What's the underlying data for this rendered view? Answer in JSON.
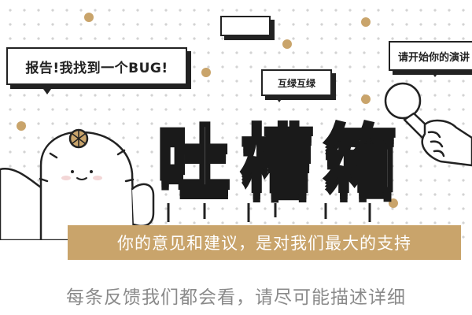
{
  "banner": {
    "report_bubble": "报告!我找到一个BUG!",
    "tag_bubble": "互绿互绿",
    "speech_bubble": "请开始你的演讲",
    "title_chars": [
      "吐",
      "槽",
      "箱"
    ]
  },
  "tagline": "你的意见和建议，是对我们最大的支持",
  "subtitle": "每条反馈我们都会看，请尽可能描述详细",
  "colors": {
    "accent": "#c9a46b",
    "dots": "#d3d3d3",
    "outline": "#222222",
    "subtitle_text": "#8a8a8a"
  },
  "icons": [
    "cactus-icon",
    "microphone-icon"
  ]
}
